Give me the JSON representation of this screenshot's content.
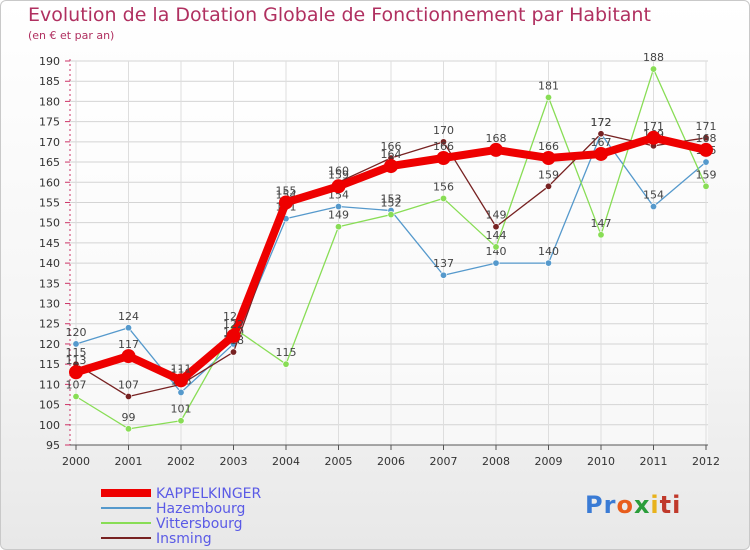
{
  "header": {
    "title": "Evolution de la Dotation Globale de Fonctionnement par Habitant",
    "subtitle": "(en € et par an)"
  },
  "logo": {
    "parts": [
      "Pr",
      "o",
      "x",
      "i",
      "ti"
    ],
    "colors": [
      "#3a7bd5",
      "#e85d1c",
      "#2a9d3a",
      "#e8b21c",
      "#c0392b"
    ]
  },
  "chart_data": {
    "type": "line",
    "title": "Evolution de la Dotation Globale de Fonctionnement par Habitant",
    "subtitle": "(en € et par an)",
    "xlabel": "",
    "ylabel": "",
    "ylim": [
      95,
      190
    ],
    "ytick_step": 5,
    "grid": true,
    "legend": "bottom-left",
    "categories": [
      "2000",
      "2001",
      "2002",
      "2003",
      "2004",
      "2005",
      "2006",
      "2007",
      "2008",
      "2009",
      "2010",
      "2011",
      "2012"
    ],
    "series": [
      {
        "name": "KAPPELKINGER",
        "color": "#ee0000",
        "emphasis": true,
        "values": [
          113,
          117,
          111,
          122,
          155,
          159,
          164,
          166,
          168,
          166,
          167,
          171,
          168
        ]
      },
      {
        "name": "Hazembourg",
        "color": "#5599cc",
        "values": [
          120,
          124,
          108,
          120,
          151,
          154,
          153,
          137,
          140,
          140,
          172,
          154,
          165
        ]
      },
      {
        "name": "Vittersbourg",
        "color": "#88dd55",
        "values": [
          107,
          99,
          101,
          124,
          115,
          149,
          152,
          156,
          144,
          181,
          147,
          188,
          159
        ]
      },
      {
        "name": "Insming",
        "color": "#772222",
        "values": [
          115,
          107,
          110,
          118,
          154,
          160,
          166,
          170,
          149,
          159,
          172,
          169,
          171
        ]
      }
    ]
  }
}
